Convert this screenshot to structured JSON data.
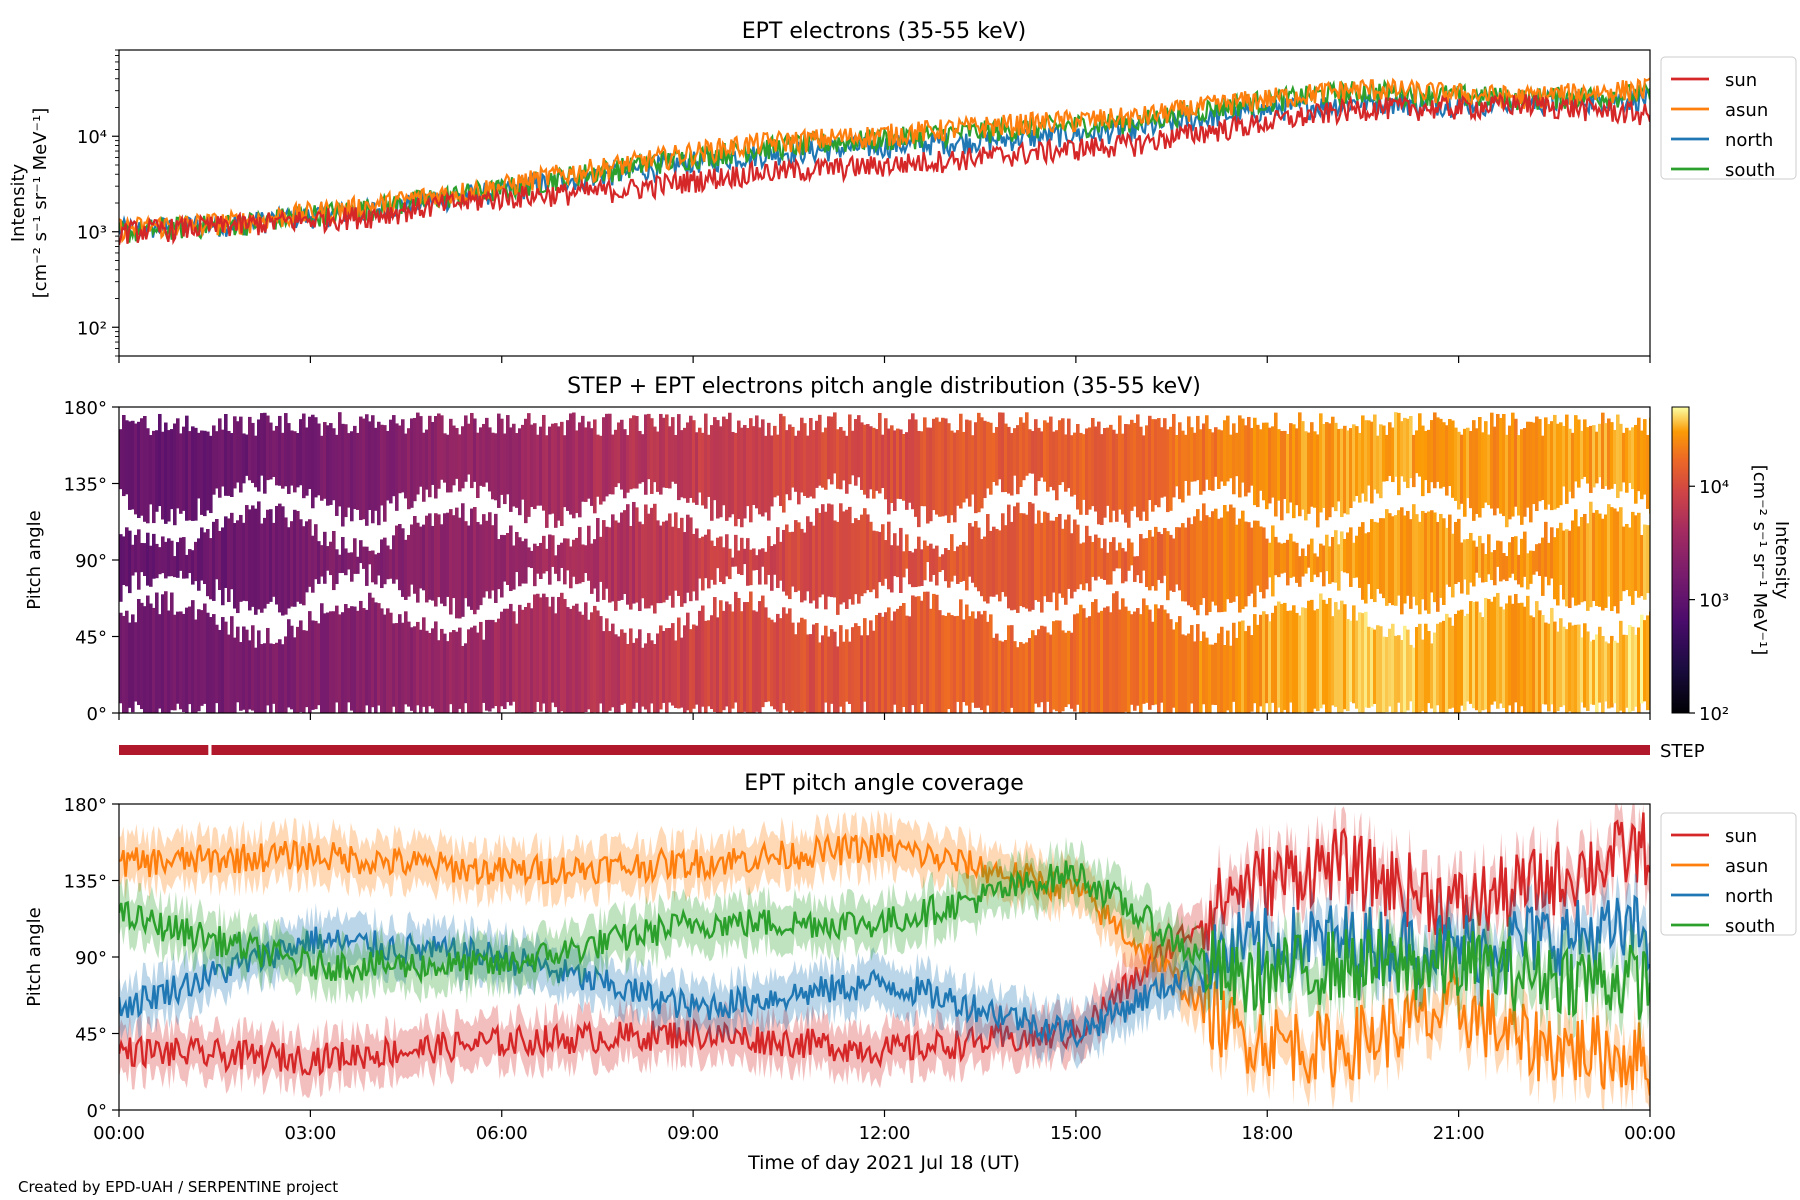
{
  "figure": {
    "credit": "Created by EPD-UAH / SERPENTINE project",
    "xlabel": "Time of day 2021 Jul 18 (UT)",
    "x_ticks": [
      "00:00",
      "03:00",
      "06:00",
      "09:00",
      "12:00",
      "15:00",
      "18:00",
      "21:00",
      "00:00"
    ]
  },
  "chart_data": [
    {
      "type": "line",
      "title": "EPT electrons (35-55 keV)",
      "ylabel_line1": "Intensity",
      "ylabel_line2": "[cm⁻² s⁻¹ sr⁻¹ MeV⁻¹]",
      "yscale": "log",
      "ylim": [
        50,
        80000
      ],
      "y_ticks": [
        "10²",
        "10³",
        "10⁴"
      ],
      "x_unit": "hours",
      "xlim": [
        0,
        24
      ],
      "legend": "outside-right",
      "series": [
        {
          "name": "sun",
          "color": "#d62728",
          "x": [
            0,
            2,
            4,
            6,
            8,
            10,
            12,
            14,
            16,
            18,
            19.5,
            21,
            22,
            24
          ],
          "values": [
            1000,
            1200,
            1500,
            2300,
            2800,
            4200,
            5000,
            6500,
            8500,
            14000,
            20000,
            20000,
            22000,
            17000
          ]
        },
        {
          "name": "asun",
          "color": "#ff7f0e",
          "x": [
            0,
            2,
            4,
            6,
            8,
            10,
            12,
            14,
            16,
            18,
            19.5,
            21,
            22,
            24
          ],
          "values": [
            1100,
            1300,
            1900,
            3000,
            5200,
            8500,
            10500,
            13500,
            16000,
            25000,
            32000,
            28000,
            26000,
            32000
          ]
        },
        {
          "name": "north",
          "color": "#1f77b4",
          "x": [
            0,
            2,
            4,
            6,
            8,
            10,
            12,
            14,
            16,
            18,
            19.5,
            21,
            22,
            24
          ],
          "values": [
            1050,
            1250,
            1700,
            2700,
            4300,
            6500,
            8000,
            9500,
            12000,
            19000,
            23000,
            22000,
            23000,
            25000
          ]
        },
        {
          "name": "south",
          "color": "#2ca02c",
          "x": [
            0,
            2,
            4,
            6,
            8,
            10,
            12,
            14,
            16,
            18,
            19.5,
            21,
            22,
            24
          ],
          "values": [
            1000,
            1250,
            1800,
            2800,
            4800,
            7500,
            9500,
            12000,
            14500,
            24000,
            30000,
            27000,
            25000,
            28000
          ]
        }
      ]
    },
    {
      "type": "heatmap",
      "title": "STEP + EPT electrons pitch angle distribution (35-55 keV)",
      "ylabel": "Pitch angle",
      "y_ticks": [
        "0°",
        "45°",
        "90°",
        "135°",
        "180°"
      ],
      "ylim": [
        0,
        180
      ],
      "colorbar_label_line1": "Intensity",
      "colorbar_label_line2": "[cm⁻² s⁻¹ sr⁻¹ MeV⁻¹]",
      "colorbar_ticks": [
        "10²",
        "10³",
        "10⁴"
      ],
      "colorscale": "inferno",
      "clim": [
        100,
        50000
      ]
    },
    {
      "type": "bar",
      "label": "STEP",
      "color": "#b2182b",
      "coverage_hours": [
        [
          0,
          1.4
        ],
        [
          1.45,
          24
        ]
      ]
    },
    {
      "type": "line",
      "title": "EPT pitch angle coverage",
      "ylabel": "Pitch angle",
      "y_ticks": [
        "0°",
        "45°",
        "90°",
        "135°",
        "180°"
      ],
      "ylim": [
        0,
        180
      ],
      "legend": "outside-right",
      "series": [
        {
          "name": "sun",
          "color": "#d62728",
          "x": [
            0,
            3,
            6,
            9,
            12,
            15,
            17.5,
            19,
            21,
            22,
            24
          ],
          "values": [
            35,
            30,
            40,
            45,
            35,
            45,
            130,
            145,
            120,
            130,
            155
          ]
        },
        {
          "name": "asun",
          "color": "#ff7f0e",
          "x": [
            0,
            3,
            6,
            9,
            12,
            15,
            17.5,
            19,
            21,
            22,
            24
          ],
          "values": [
            145,
            150,
            140,
            145,
            155,
            130,
            45,
            35,
            60,
            40,
            30
          ]
        },
        {
          "name": "north",
          "color": "#1f77b4",
          "x": [
            0,
            3,
            6,
            9,
            12,
            15,
            17.5,
            19,
            21,
            22,
            24
          ],
          "values": [
            60,
            100,
            90,
            60,
            75,
            45,
            95,
            100,
            95,
            100,
            105
          ]
        },
        {
          "name": "south",
          "color": "#2ca02c",
          "x": [
            0,
            3,
            6,
            9,
            12,
            15,
            17.5,
            19,
            21,
            22,
            24
          ],
          "values": [
            115,
            85,
            85,
            110,
            110,
            140,
            75,
            85,
            85,
            80,
            75
          ]
        }
      ]
    }
  ]
}
